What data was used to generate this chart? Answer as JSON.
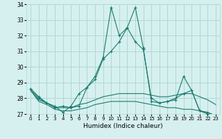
{
  "xlabel": "Humidex (Indice chaleur)",
  "x": [
    0,
    1,
    2,
    3,
    4,
    5,
    6,
    7,
    8,
    9,
    10,
    11,
    12,
    13,
    14,
    15,
    16,
    17,
    18,
    19,
    20,
    21,
    22,
    23
  ],
  "series": [
    [
      28.6,
      28.1,
      27.7,
      27.5,
      27.1,
      27.5,
      28.3,
      28.7,
      29.4,
      30.6,
      33.8,
      32.0,
      32.5,
      31.6,
      31.1,
      28.0,
      27.7,
      27.8,
      27.9,
      29.4,
      28.5,
      27.2,
      27.1,
      26.8
    ],
    [
      28.6,
      28.0,
      27.7,
      27.4,
      27.5,
      27.4,
      27.5,
      28.7,
      29.2,
      30.5,
      31.0,
      31.6,
      32.5,
      33.8,
      31.2,
      27.8,
      27.7,
      27.8,
      28.0,
      28.3,
      28.5,
      27.2,
      27.0,
      26.8
    ],
    [
      28.5,
      27.9,
      27.7,
      27.4,
      27.4,
      27.4,
      27.6,
      27.7,
      27.9,
      28.1,
      28.2,
      28.3,
      28.3,
      28.3,
      28.3,
      28.2,
      28.1,
      28.1,
      28.2,
      28.3,
      28.3,
      28.1,
      27.9,
      27.6
    ],
    [
      28.5,
      27.8,
      27.6,
      27.3,
      27.2,
      27.2,
      27.3,
      27.4,
      27.6,
      27.7,
      27.8,
      27.8,
      27.8,
      27.8,
      27.7,
      27.6,
      27.5,
      27.4,
      27.4,
      27.3,
      27.3,
      27.2,
      27.1,
      26.9
    ]
  ],
  "line_color": "#1a7a6e",
  "bg_color": "#d6f0ef",
  "grid_color": "#aed8d4",
  "ylim": [
    27,
    34
  ],
  "yticks": [
    27,
    28,
    29,
    30,
    31,
    32,
    33,
    34
  ],
  "xlim": [
    -0.5,
    23.5
  ],
  "xticks": [
    0,
    1,
    2,
    3,
    4,
    5,
    6,
    7,
    8,
    9,
    10,
    11,
    12,
    13,
    14,
    15,
    16,
    17,
    18,
    19,
    20,
    21,
    22,
    23
  ]
}
